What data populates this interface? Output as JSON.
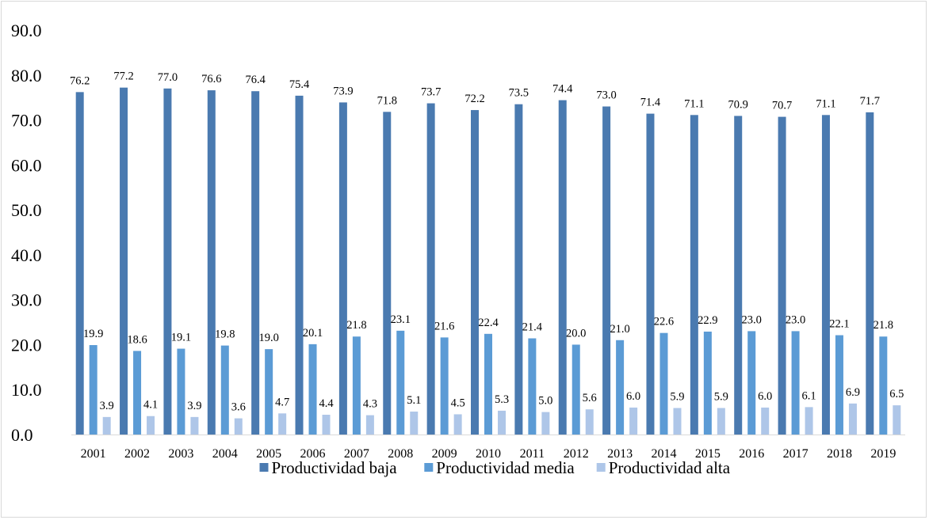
{
  "chart_data": {
    "type": "bar",
    "title": "",
    "xlabel": "",
    "ylabel": "",
    "ylim": [
      0,
      90
    ],
    "ytick_step": 10,
    "ytick_labels": [
      "0.0",
      "10.0",
      "20.0",
      "30.0",
      "40.0",
      "50.0",
      "60.0",
      "70.0",
      "80.0",
      "90.0"
    ],
    "categories": [
      "2001",
      "2002",
      "2003",
      "2004",
      "2005",
      "2006",
      "2007",
      "2008",
      "2009",
      "2010",
      "2011",
      "2012",
      "2013",
      "2014",
      "2015",
      "2016",
      "2017",
      "2018",
      "2019"
    ],
    "series": [
      {
        "name": "Productividad baja",
        "color": "#4a7ab0",
        "values": [
          76.2,
          77.2,
          77.0,
          76.6,
          76.4,
          75.4,
          73.9,
          71.8,
          73.7,
          72.2,
          73.5,
          74.4,
          73.0,
          71.4,
          71.1,
          70.9,
          70.7,
          71.1,
          71.7
        ],
        "labels": [
          "76.2",
          "77.2",
          "77.0",
          "76.6",
          "76.4",
          "75.4",
          "73.9",
          "71.8",
          "73.7",
          "72.2",
          "73.5",
          "74.4",
          "73.0",
          "71.4",
          "71.1",
          "70.9",
          "70.7",
          "71.1",
          "71.7"
        ]
      },
      {
        "name": "Productividad media",
        "color": "#5b9bd5",
        "values": [
          19.9,
          18.6,
          19.1,
          19.8,
          19.0,
          20.1,
          21.8,
          23.1,
          21.6,
          22.4,
          21.4,
          20.0,
          21.0,
          22.6,
          22.9,
          23.0,
          23.0,
          22.1,
          21.8
        ],
        "labels": [
          "19.9",
          "18.6",
          "19.1",
          "19.8",
          "19.0",
          "20.1",
          "21.8",
          "23.1",
          "21.6",
          "22.4",
          "21.4",
          "20.0",
          "21.0",
          "22.6",
          "22.9",
          "23.0",
          "23.0",
          "22.1",
          "21.8"
        ]
      },
      {
        "name": "Productividad alta",
        "color": "#aec6e8",
        "values": [
          3.9,
          4.1,
          3.9,
          3.6,
          4.7,
          4.4,
          4.3,
          5.1,
          4.5,
          5.3,
          5.0,
          5.6,
          6.0,
          5.9,
          5.9,
          6.0,
          6.1,
          6.9,
          6.5
        ],
        "labels": [
          "3.9",
          "4.1",
          "3.9",
          "3.6",
          "4.7",
          "4.4",
          "4.3",
          "5.1",
          "4.5",
          "5.3",
          "5.0",
          "5.6",
          "6.0",
          "5.9",
          "5.9",
          "6.0",
          "6.1",
          "6.9",
          "6.5"
        ]
      }
    ],
    "grid": false,
    "legend": "bottom"
  }
}
